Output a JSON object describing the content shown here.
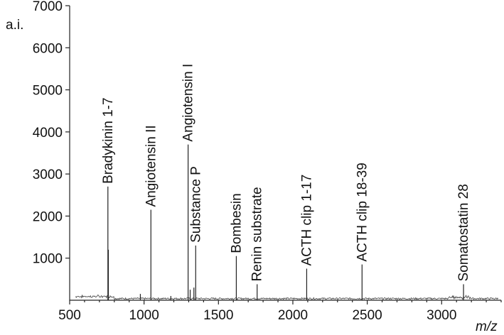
{
  "chart_data": {
    "type": "line",
    "title": "",
    "xlabel": "m/z",
    "ylabel": "a.i.",
    "xlim": [
      500,
      3400
    ],
    "ylim": [
      0,
      7000
    ],
    "xticks": [
      500,
      1000,
      1500,
      2000,
      2500,
      3000
    ],
    "yticks": [
      1000,
      2000,
      3000,
      4000,
      5000,
      6000,
      7000
    ],
    "xtick_labels": [
      "500",
      "1000",
      "1500",
      "2000",
      "2500",
      "3000"
    ],
    "ytick_labels": [
      "1000",
      "2000",
      "3000",
      "4000",
      "5000",
      "6000",
      "7000"
    ],
    "grid": false,
    "peaks": [
      {
        "name": "Bradykinin 1-7",
        "x": 757,
        "y": 2700
      },
      {
        "name": "Angiotensin II",
        "x": 1046,
        "y": 2150
      },
      {
        "name": "Angiotensin I",
        "x": 1296,
        "y": 3700
      },
      {
        "name": "Substance P",
        "x": 1347,
        "y": 1300
      },
      {
        "name": "Bombesin",
        "x": 1620,
        "y": 1050
      },
      {
        "name": "Renin substrate",
        "x": 1760,
        "y": 380
      },
      {
        "name": "ACTH clip 1-17",
        "x": 2093,
        "y": 750
      },
      {
        "name": "ACTH clip 18-39",
        "x": 2465,
        "y": 850
      },
      {
        "name": "Somatostatin 28",
        "x": 3147,
        "y": 380
      }
    ],
    "minor_peaks": [
      {
        "x": 760,
        "y": 1200
      },
      {
        "x": 1310,
        "y": 250
      },
      {
        "x": 1335,
        "y": 300
      },
      {
        "x": 975,
        "y": 150
      },
      {
        "x": 1180,
        "y": 100
      }
    ]
  }
}
